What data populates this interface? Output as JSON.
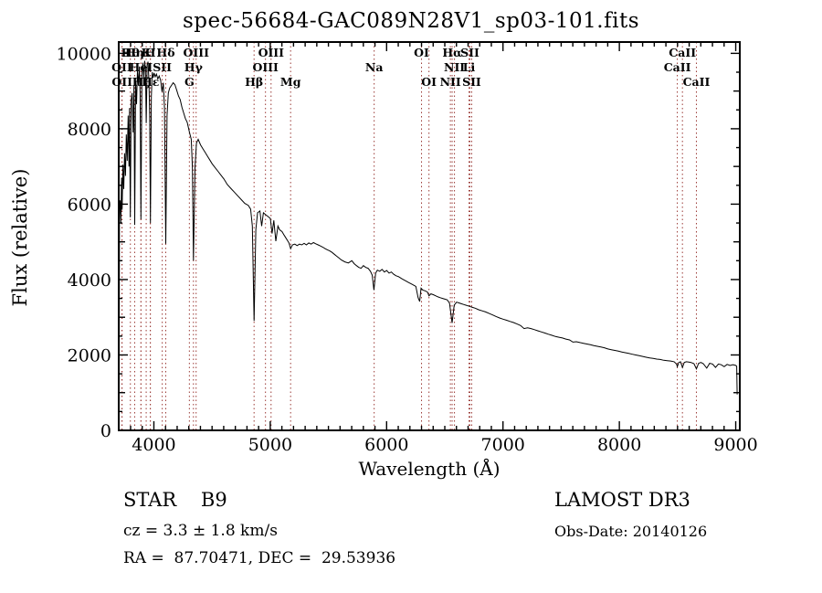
{
  "annotations": {
    "classification": "STAR    B9",
    "cz": "cz = 3.3 ± 1.8 km/s",
    "ra_dec": "RA =  87.70471, DEC =  29.53936",
    "survey": "LAMOST DR3",
    "obs_date": "Obs-Date: 20140126"
  },
  "chart_data": {
    "type": "line",
    "title": "spec-56684-GAC089N28V1_sp03-101.fits",
    "xlabel": "Wavelength (Å)",
    "ylabel": "Flux (relative)",
    "xlim": [
      3698,
      9035
    ],
    "ylim": [
      0,
      10300
    ],
    "x_major_ticks": [
      4000,
      5000,
      6000,
      7000,
      8000,
      9000
    ],
    "x_minor_step": 100,
    "y_major_ticks": [
      0,
      2000,
      4000,
      6000,
      8000,
      10000
    ],
    "y_medium_step": 1000,
    "y_minor_step": 500,
    "grid": false,
    "legend": false,
    "spectrum_color": "#000000",
    "line_marker_color": "#9b3a36",
    "spectral_lines": [
      {
        "label": "Hθ",
        "wavelength": 3798,
        "row": 0
      },
      {
        "label": "Hη",
        "wavelength": 3835,
        "row": 0
      },
      {
        "label": "K",
        "wavelength": 3934,
        "row": 0
      },
      {
        "label": "H",
        "wavelength": 3969,
        "row": 0
      },
      {
        "label": "Hδ",
        "wavelength": 4102,
        "row": 0
      },
      {
        "label": "OIII",
        "wavelength": 4363,
        "row": 0
      },
      {
        "label": "OIII",
        "wavelength": 5007,
        "row": 0
      },
      {
        "label": "OI",
        "wavelength": 6300,
        "row": 0
      },
      {
        "label": "Hα",
        "wavelength": 6563,
        "row": 0
      },
      {
        "label": "SII",
        "wavelength": 6716,
        "row": 0
      },
      {
        "label": "CaII",
        "wavelength": 8542,
        "row": 0
      },
      {
        "label": "OII",
        "wavelength": 3725,
        "row": 1
      },
      {
        "label": "HeI",
        "wavelength": 3889,
        "row": 1
      },
      {
        "label": "SII",
        "wavelength": 4072,
        "row": 1
      },
      {
        "label": "Hγ",
        "wavelength": 4340,
        "row": 1
      },
      {
        "label": "OIII",
        "wavelength": 4959,
        "row": 1
      },
      {
        "label": "Na",
        "wavelength": 5893,
        "row": 1
      },
      {
        "label": "NII",
        "wavelength": 6583,
        "row": 1
      },
      {
        "label": "Li",
        "wavelength": 6708,
        "row": 1
      },
      {
        "label": "CaII",
        "wavelength": 8498,
        "row": 1
      },
      {
        "label": "OII",
        "wavelength": 3727,
        "row": 2
      },
      {
        "label": "Hζ",
        "wavelength": 3889,
        "row": 2
      },
      {
        "label": "Hε",
        "wavelength": 3970,
        "row": 2
      },
      {
        "label": "G",
        "wavelength": 4305,
        "row": 2
      },
      {
        "label": "Hβ",
        "wavelength": 4861,
        "row": 2
      },
      {
        "label": "Mg",
        "wavelength": 5175,
        "row": 2
      },
      {
        "label": "OI",
        "wavelength": 6364,
        "row": 2
      },
      {
        "label": "NII",
        "wavelength": 6548,
        "row": 2
      },
      {
        "label": "SII",
        "wavelength": 6731,
        "row": 2
      },
      {
        "label": "CaII",
        "wavelength": 8662,
        "row": 2
      }
    ],
    "series": [
      {
        "name": "flux",
        "points": [
          [
            3702,
            1000
          ],
          [
            3704,
            5900
          ],
          [
            3710,
            6100
          ],
          [
            3716,
            5500
          ],
          [
            3722,
            6700
          ],
          [
            3727,
            5850
          ],
          [
            3734,
            7050
          ],
          [
            3741,
            6400
          ],
          [
            3748,
            7350
          ],
          [
            3756,
            6750
          ],
          [
            3763,
            7850
          ],
          [
            3771,
            7150
          ],
          [
            3779,
            8350
          ],
          [
            3786,
            7000
          ],
          [
            3791,
            8550
          ],
          [
            3798,
            5650
          ],
          [
            3805,
            8750
          ],
          [
            3813,
            8950
          ],
          [
            3821,
            7900
          ],
          [
            3829,
            9150
          ],
          [
            3835,
            5450
          ],
          [
            3843,
            9250
          ],
          [
            3851,
            8650
          ],
          [
            3859,
            9550
          ],
          [
            3867,
            9150
          ],
          [
            3875,
            9650
          ],
          [
            3882,
            8950
          ],
          [
            3889,
            5600
          ],
          [
            3897,
            9450
          ],
          [
            3905,
            9750
          ],
          [
            3913,
            9350
          ],
          [
            3921,
            9800
          ],
          [
            3928,
            9550
          ],
          [
            3934,
            8150
          ],
          [
            3942,
            9700
          ],
          [
            3950,
            9780
          ],
          [
            3958,
            9250
          ],
          [
            3964,
            8350
          ],
          [
            3970,
            5500
          ],
          [
            3978,
            8850
          ],
          [
            3986,
            9500
          ],
          [
            3994,
            9350
          ],
          [
            4002,
            9480
          ],
          [
            4012,
            9380
          ],
          [
            4022,
            9450
          ],
          [
            4034,
            9320
          ],
          [
            4046,
            9400
          ],
          [
            4058,
            9280
          ],
          [
            4070,
            8980
          ],
          [
            4081,
            9220
          ],
          [
            4091,
            8550
          ],
          [
            4102,
            4950
          ],
          [
            4113,
            8350
          ],
          [
            4124,
            8950
          ],
          [
            4136,
            9080
          ],
          [
            4151,
            9150
          ],
          [
            4166,
            9220
          ],
          [
            4181,
            9170
          ],
          [
            4196,
            9020
          ],
          [
            4211,
            8870
          ],
          [
            4226,
            8770
          ],
          [
            4241,
            8570
          ],
          [
            4256,
            8420
          ],
          [
            4271,
            8270
          ],
          [
            4287,
            8170
          ],
          [
            4305,
            7920
          ],
          [
            4321,
            7720
          ],
          [
            4331,
            6950
          ],
          [
            4340,
            4500
          ],
          [
            4353,
            6950
          ],
          [
            4366,
            7620
          ],
          [
            4381,
            7720
          ],
          [
            4401,
            7570
          ],
          [
            4421,
            7470
          ],
          [
            4441,
            7370
          ],
          [
            4461,
            7270
          ],
          [
            4481,
            7170
          ],
          [
            4501,
            7070
          ],
          [
            4526,
            6970
          ],
          [
            4551,
            6870
          ],
          [
            4576,
            6770
          ],
          [
            4601,
            6670
          ],
          [
            4631,
            6520
          ],
          [
            4661,
            6420
          ],
          [
            4691,
            6320
          ],
          [
            4721,
            6220
          ],
          [
            4751,
            6120
          ],
          [
            4781,
            6020
          ],
          [
            4811,
            5970
          ],
          [
            4831,
            5870
          ],
          [
            4846,
            5420
          ],
          [
            4861,
            2900
          ],
          [
            4876,
            5320
          ],
          [
            4891,
            5770
          ],
          [
            4911,
            5820
          ],
          [
            4926,
            5420
          ],
          [
            4941,
            5770
          ],
          [
            4961,
            5720
          ],
          [
            4981,
            5670
          ],
          [
            5001,
            5620
          ],
          [
            5016,
            5220
          ],
          [
            5031,
            5570
          ],
          [
            5048,
            5020
          ],
          [
            5066,
            5420
          ],
          [
            5081,
            5320
          ],
          [
            5101,
            5270
          ],
          [
            5121,
            5170
          ],
          [
            5141,
            5070
          ],
          [
            5161,
            4970
          ],
          [
            5175,
            4820
          ],
          [
            5191,
            4920
          ],
          [
            5211,
            4940
          ],
          [
            5231,
            4900
          ],
          [
            5251,
            4940
          ],
          [
            5271,
            4920
          ],
          [
            5291,
            4960
          ],
          [
            5311,
            4920
          ],
          [
            5331,
            4970
          ],
          [
            5351,
            4940
          ],
          [
            5371,
            4980
          ],
          [
            5391,
            4950
          ],
          [
            5411,
            4920
          ],
          [
            5431,
            4890
          ],
          [
            5451,
            4860
          ],
          [
            5471,
            4820
          ],
          [
            5491,
            4790
          ],
          [
            5511,
            4760
          ],
          [
            5531,
            4720
          ],
          [
            5551,
            4670
          ],
          [
            5571,
            4620
          ],
          [
            5591,
            4570
          ],
          [
            5611,
            4520
          ],
          [
            5641,
            4470
          ],
          [
            5671,
            4440
          ],
          [
            5701,
            4500
          ],
          [
            5721,
            4420
          ],
          [
            5741,
            4370
          ],
          [
            5761,
            4320
          ],
          [
            5781,
            4300
          ],
          [
            5801,
            4370
          ],
          [
            5821,
            4320
          ],
          [
            5841,
            4300
          ],
          [
            5861,
            4220
          ],
          [
            5876,
            4120
          ],
          [
            5891,
            3720
          ],
          [
            5906,
            4170
          ],
          [
            5921,
            4250
          ],
          [
            5941,
            4220
          ],
          [
            5961,
            4270
          ],
          [
            5981,
            4200
          ],
          [
            6001,
            4240
          ],
          [
            6021,
            4170
          ],
          [
            6041,
            4200
          ],
          [
            6061,
            4140
          ],
          [
            6081,
            4100
          ],
          [
            6101,
            4080
          ],
          [
            6131,
            4020
          ],
          [
            6161,
            3970
          ],
          [
            6191,
            3920
          ],
          [
            6221,
            3870
          ],
          [
            6251,
            3820
          ],
          [
            6271,
            3520
          ],
          [
            6284,
            3420
          ],
          [
            6296,
            3770
          ],
          [
            6311,
            3720
          ],
          [
            6331,
            3700
          ],
          [
            6351,
            3670
          ],
          [
            6364,
            3570
          ],
          [
            6381,
            3620
          ],
          [
            6401,
            3600
          ],
          [
            6421,
            3570
          ],
          [
            6441,
            3540
          ],
          [
            6461,
            3520
          ],
          [
            6481,
            3500
          ],
          [
            6501,
            3480
          ],
          [
            6521,
            3460
          ],
          [
            6541,
            3370
          ],
          [
            6563,
            2850
          ],
          [
            6581,
            3320
          ],
          [
            6601,
            3400
          ],
          [
            6621,
            3380
          ],
          [
            6641,
            3360
          ],
          [
            6661,
            3340
          ],
          [
            6681,
            3320
          ],
          [
            6701,
            3300
          ],
          [
            6721,
            3280
          ],
          [
            6741,
            3260
          ],
          [
            6761,
            3240
          ],
          [
            6791,
            3200
          ],
          [
            6821,
            3170
          ],
          [
            6851,
            3140
          ],
          [
            6881,
            3100
          ],
          [
            6911,
            3060
          ],
          [
            6941,
            3020
          ],
          [
            6971,
            2980
          ],
          [
            7001,
            2950
          ],
          [
            7031,
            2920
          ],
          [
            7061,
            2890
          ],
          [
            7091,
            2860
          ],
          [
            7121,
            2820
          ],
          [
            7151,
            2780
          ],
          [
            7181,
            2700
          ],
          [
            7211,
            2720
          ],
          [
            7241,
            2700
          ],
          [
            7271,
            2670
          ],
          [
            7301,
            2640
          ],
          [
            7331,
            2610
          ],
          [
            7361,
            2580
          ],
          [
            7391,
            2550
          ],
          [
            7421,
            2520
          ],
          [
            7451,
            2490
          ],
          [
            7481,
            2470
          ],
          [
            7511,
            2450
          ],
          [
            7541,
            2420
          ],
          [
            7571,
            2400
          ],
          [
            7601,
            2340
          ],
          [
            7631,
            2350
          ],
          [
            7661,
            2330
          ],
          [
            7691,
            2310
          ],
          [
            7721,
            2290
          ],
          [
            7751,
            2270
          ],
          [
            7781,
            2250
          ],
          [
            7811,
            2230
          ],
          [
            7841,
            2210
          ],
          [
            7871,
            2190
          ],
          [
            7901,
            2160
          ],
          [
            7931,
            2140
          ],
          [
            7961,
            2120
          ],
          [
            7991,
            2100
          ],
          [
            8021,
            2080
          ],
          [
            8051,
            2060
          ],
          [
            8081,
            2040
          ],
          [
            8111,
            2020
          ],
          [
            8141,
            2000
          ],
          [
            8171,
            1980
          ],
          [
            8201,
            1960
          ],
          [
            8231,
            1940
          ],
          [
            8261,
            1920
          ],
          [
            8291,
            1910
          ],
          [
            8321,
            1890
          ],
          [
            8351,
            1880
          ],
          [
            8381,
            1860
          ],
          [
            8411,
            1850
          ],
          [
            8441,
            1840
          ],
          [
            8471,
            1820
          ],
          [
            8491,
            1760
          ],
          [
            8498,
            1690
          ],
          [
            8511,
            1800
          ],
          [
            8526,
            1820
          ],
          [
            8542,
            1670
          ],
          [
            8558,
            1800
          ],
          [
            8576,
            1820
          ],
          [
            8596,
            1810
          ],
          [
            8616,
            1800
          ],
          [
            8641,
            1770
          ],
          [
            8662,
            1630
          ],
          [
            8681,
            1780
          ],
          [
            8701,
            1800
          ],
          [
            8721,
            1770
          ],
          [
            8751,
            1650
          ],
          [
            8776,
            1780
          ],
          [
            8801,
            1760
          ],
          [
            8826,
            1670
          ],
          [
            8851,
            1760
          ],
          [
            8876,
            1740
          ],
          [
            8901,
            1690
          ],
          [
            8926,
            1750
          ],
          [
            8951,
            1720
          ],
          [
            8976,
            1740
          ],
          [
            9001,
            1720
          ],
          [
            9008,
            1700
          ],
          [
            9012,
            950
          ]
        ]
      }
    ]
  }
}
